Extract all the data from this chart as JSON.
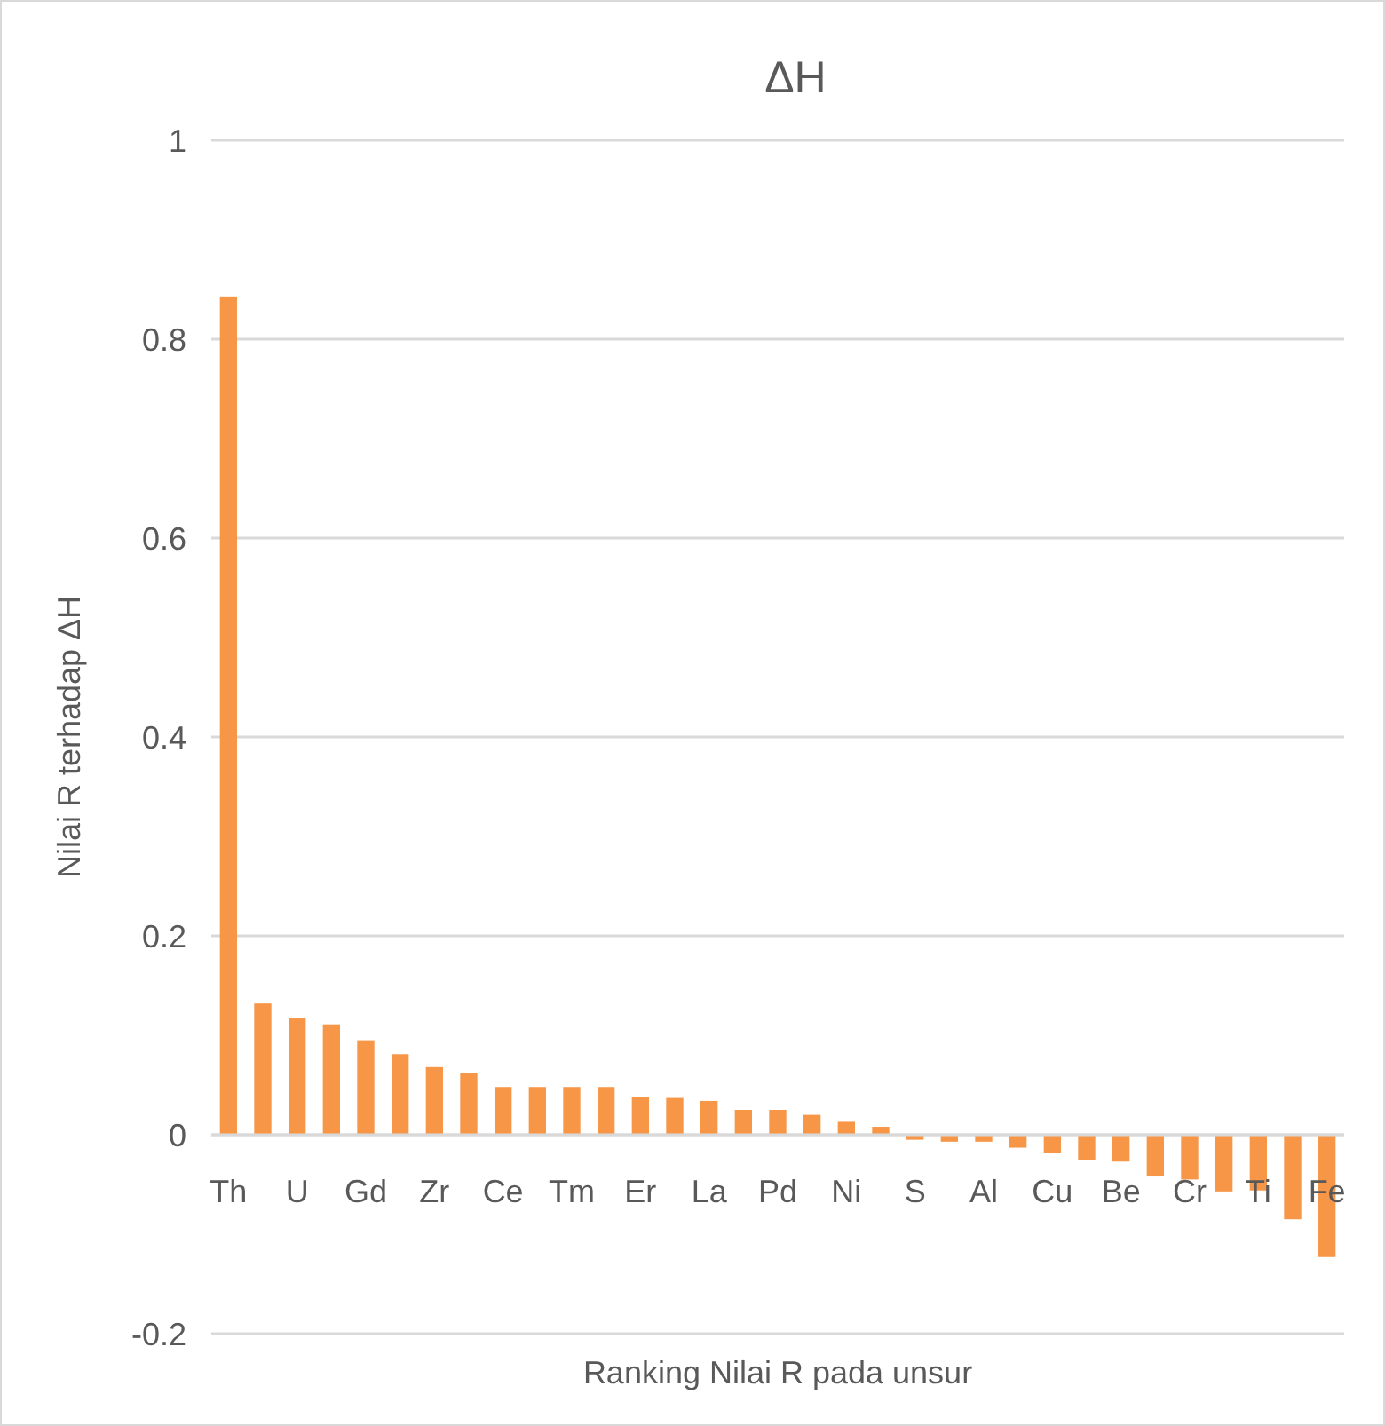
{
  "chart_data": {
    "type": "bar",
    "title": "ΔH",
    "xlabel": "Ranking Nilai R pada unsur",
    "ylabel": "Nilai R terhadap ΔH",
    "categories": [
      "Th",
      null,
      "U",
      null,
      "Gd",
      null,
      "Zr",
      null,
      "Ce",
      null,
      "Tm",
      null,
      "Er",
      null,
      "La",
      null,
      "Pd",
      null,
      "Ni",
      null,
      "S",
      null,
      "Al",
      null,
      "Cu",
      null,
      "Be",
      null,
      "Cr",
      null,
      "Ti",
      null,
      "Fe"
    ],
    "values": [
      0.843,
      0.132,
      0.117,
      0.111,
      0.095,
      0.081,
      0.068,
      0.062,
      0.048,
      0.048,
      0.048,
      0.048,
      0.038,
      0.037,
      0.034,
      0.025,
      0.025,
      0.02,
      0.013,
      0.008,
      -0.005,
      -0.007,
      -0.007,
      -0.013,
      -0.018,
      -0.025,
      -0.027,
      -0.042,
      -0.045,
      -0.057,
      -0.056,
      -0.085,
      -0.123
    ],
    "color": "#f79646",
    "ylim": [
      -0.2,
      1
    ],
    "yticks": [
      -0.2,
      0,
      0.2,
      0.4,
      0.6,
      0.8,
      1
    ],
    "grid": "y"
  }
}
